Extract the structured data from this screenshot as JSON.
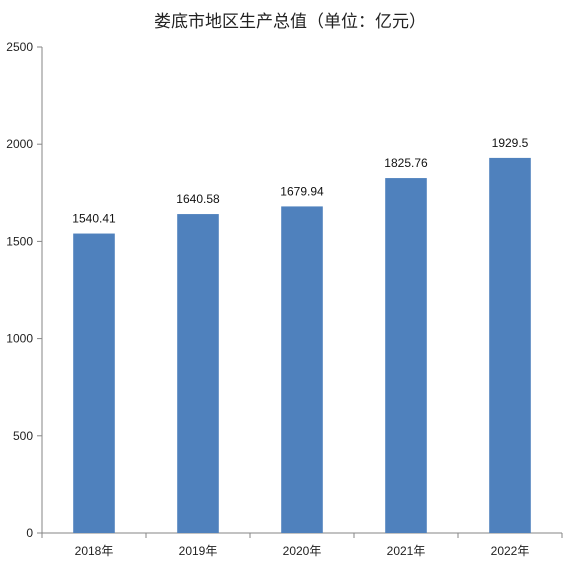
{
  "chart_data": {
    "type": "bar",
    "title": "娄底市地区生产总值（单位：亿元）",
    "categories": [
      "2018年",
      "2019年",
      "2020年",
      "2021年",
      "2022年"
    ],
    "values": [
      1540.41,
      1640.58,
      1679.94,
      1825.76,
      1929.5
    ],
    "data_labels": [
      "1540.41",
      "1640.58",
      "1679.94",
      "1825.76",
      "1929.5"
    ],
    "y_ticks": [
      "0",
      "500",
      "1000",
      "1500",
      "2000",
      "2500"
    ],
    "ylim": [
      0,
      2500
    ],
    "xlabel": "",
    "ylabel": "",
    "grid": false,
    "legend": "none",
    "bar_color": "#4F81BD",
    "axis_color": "#868686"
  }
}
